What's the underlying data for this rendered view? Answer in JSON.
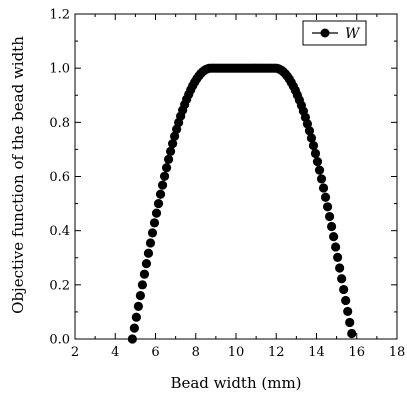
{
  "chart_data": {
    "type": "scatter",
    "title": "",
    "xlabel": "Bead width (mm)",
    "ylabel": "Objective function of the bead width",
    "xlim": [
      2,
      18
    ],
    "ylim": [
      0.0,
      1.2
    ],
    "xticks": [
      2,
      4,
      6,
      8,
      10,
      12,
      14,
      16,
      18
    ],
    "yticks": [
      0.0,
      0.2,
      0.4,
      0.6,
      0.8,
      1.0,
      1.2
    ],
    "xtick_labels": [
      "2",
      "4",
      "6",
      "8",
      "10",
      "12",
      "14",
      "16",
      "18"
    ],
    "ytick_labels": [
      "0.0",
      "0.2",
      "0.4",
      "0.6",
      "0.8",
      "1.0",
      "1.2"
    ],
    "legend_position": "top-right",
    "grid": false,
    "marker_color": "#000000",
    "series": [
      {
        "name": "W",
        "marker": "filled-circle",
        "description_points": [
          [
            4.8,
            0.0
          ],
          [
            6.0,
            0.48
          ],
          [
            7.0,
            0.78
          ],
          [
            8.0,
            0.94
          ],
          [
            8.8,
            1.0
          ],
          [
            12.0,
            1.0
          ],
          [
            13.0,
            0.86
          ],
          [
            14.0,
            0.62
          ],
          [
            15.0,
            0.32
          ],
          [
            15.8,
            0.0
          ]
        ],
        "shape": {
          "rise_start": 4.85,
          "plateau_start": 8.75,
          "plateau_end": 11.95,
          "fall_end": 15.8,
          "peak": 1.0,
          "step": 0.1
        }
      }
    ]
  }
}
